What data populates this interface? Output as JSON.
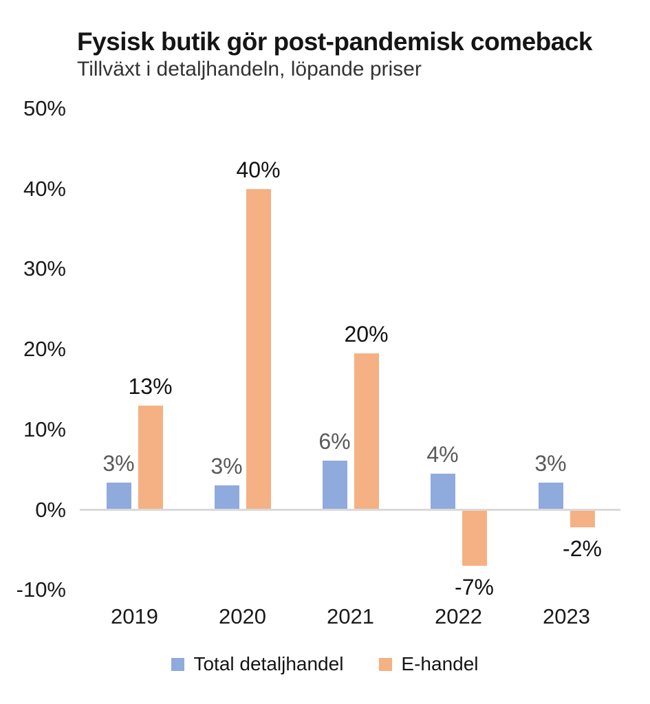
{
  "header": {
    "title": "Fysisk butik gör post-pandemisk comeback",
    "subtitle": "Tillväxt i detaljhandeln, löpande priser"
  },
  "colors": {
    "series_total": "#8FAADC",
    "series_ehandel": "#F5B183",
    "label_total": "#595959",
    "label_ehandel": "#121212",
    "axis_line": "#D9D9D9",
    "axis_text": "#1A1A1A"
  },
  "legend": {
    "items": [
      {
        "label": "Total detaljhandel",
        "color": "#8FAADC"
      },
      {
        "label": "E-handel",
        "color": "#F5B183"
      }
    ]
  },
  "chart_data": {
    "type": "bar",
    "title": "Fysisk butik gör post-pandemisk comeback",
    "subtitle": "Tillväxt i detaljhandeln, löpande priser",
    "categories": [
      "2019",
      "2020",
      "2021",
      "2022",
      "2023"
    ],
    "series": [
      {
        "name": "Total detaljhandel",
        "color": "#8FAADC",
        "label_color": "#595959",
        "values": [
          3,
          3,
          6,
          4,
          3
        ],
        "values_drawn": [
          3.4,
          3.0,
          6.1,
          4.5,
          3.4
        ],
        "labels": [
          "3%",
          "3%",
          "6%",
          "4%",
          "3%"
        ]
      },
      {
        "name": "E-handel",
        "color": "#F5B183",
        "label_color": "#121212",
        "values": [
          13,
          40,
          20,
          -7,
          -2
        ],
        "values_drawn": [
          13.0,
          40.0,
          19.5,
          -7.0,
          -2.2
        ],
        "labels": [
          "13%",
          "40%",
          "20%",
          "-7%",
          "-2%"
        ]
      }
    ],
    "xlabel": "",
    "ylabel": "",
    "ylim": [
      -10,
      50
    ],
    "yticks": [
      {
        "value": 50,
        "label": "50%"
      },
      {
        "value": 40,
        "label": "40%"
      },
      {
        "value": 30,
        "label": "30%"
      },
      {
        "value": 20,
        "label": "20%"
      },
      {
        "value": 10,
        "label": "10%"
      },
      {
        "value": 0,
        "label": "0%"
      },
      {
        "value": -10,
        "label": "-10%"
      }
    ],
    "grid": false,
    "legend_position": "bottom",
    "data_labels": true
  }
}
